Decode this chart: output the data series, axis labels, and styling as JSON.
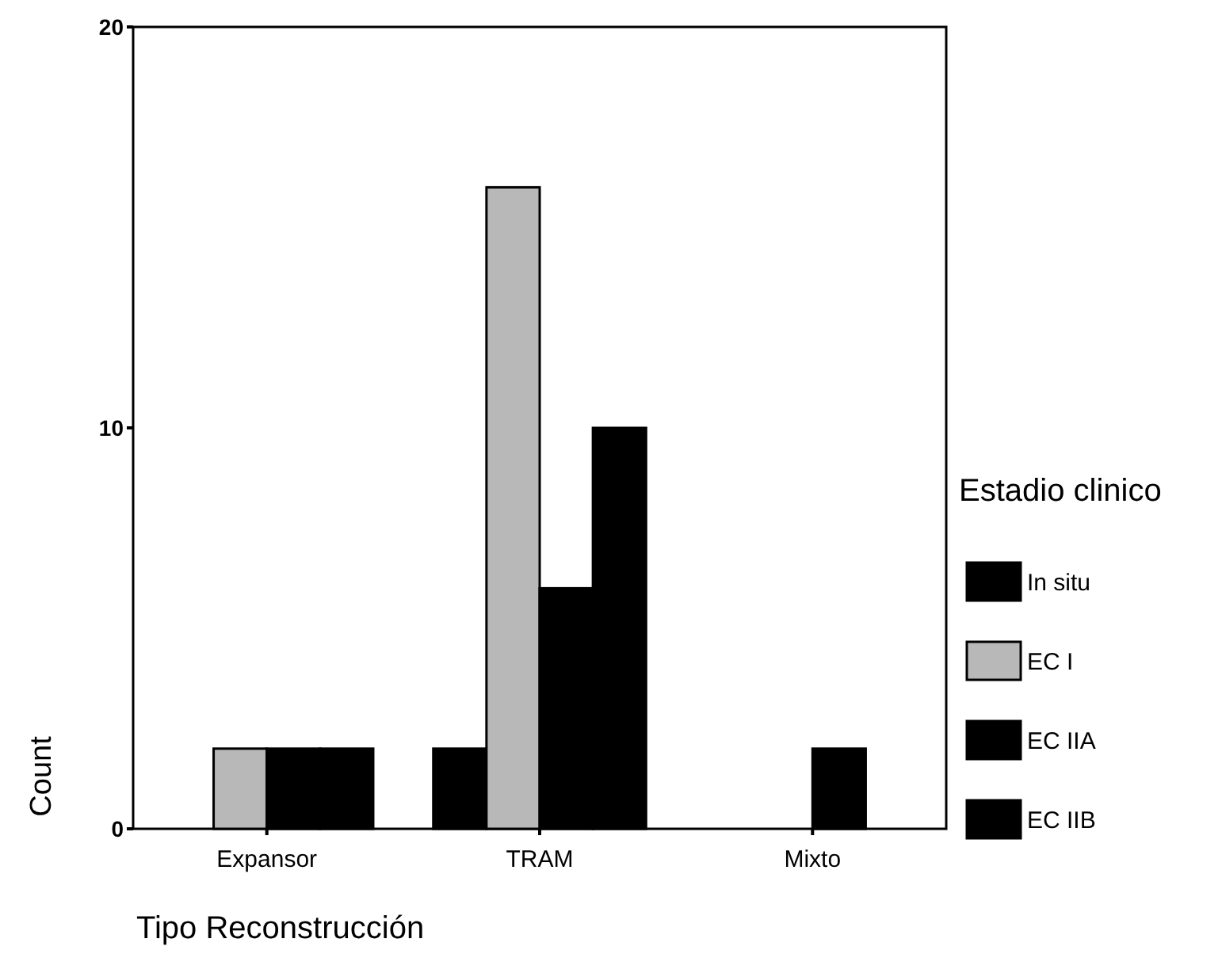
{
  "chart_data": {
    "type": "bar",
    "categories": [
      "Expansor",
      "TRAM",
      "Mixto"
    ],
    "xlabel": "Tipo Reconstrucción",
    "ylabel": "Count",
    "legend_title": "Estadio clinico",
    "legend": "right",
    "ylim": [
      0,
      20
    ],
    "yticks": [
      0,
      10,
      20
    ],
    "series": [
      {
        "name": "In situ",
        "color": "#000000",
        "values": [
          0,
          2,
          0
        ]
      },
      {
        "name": "EC I",
        "color": "#b8b8b8",
        "values": [
          2,
          16,
          0
        ]
      },
      {
        "name": "EC IIA",
        "color": "#000000",
        "values": [
          2,
          6,
          2
        ]
      },
      {
        "name": "EC IIB",
        "color": "#000000",
        "values": [
          2,
          10,
          0
        ]
      }
    ]
  }
}
